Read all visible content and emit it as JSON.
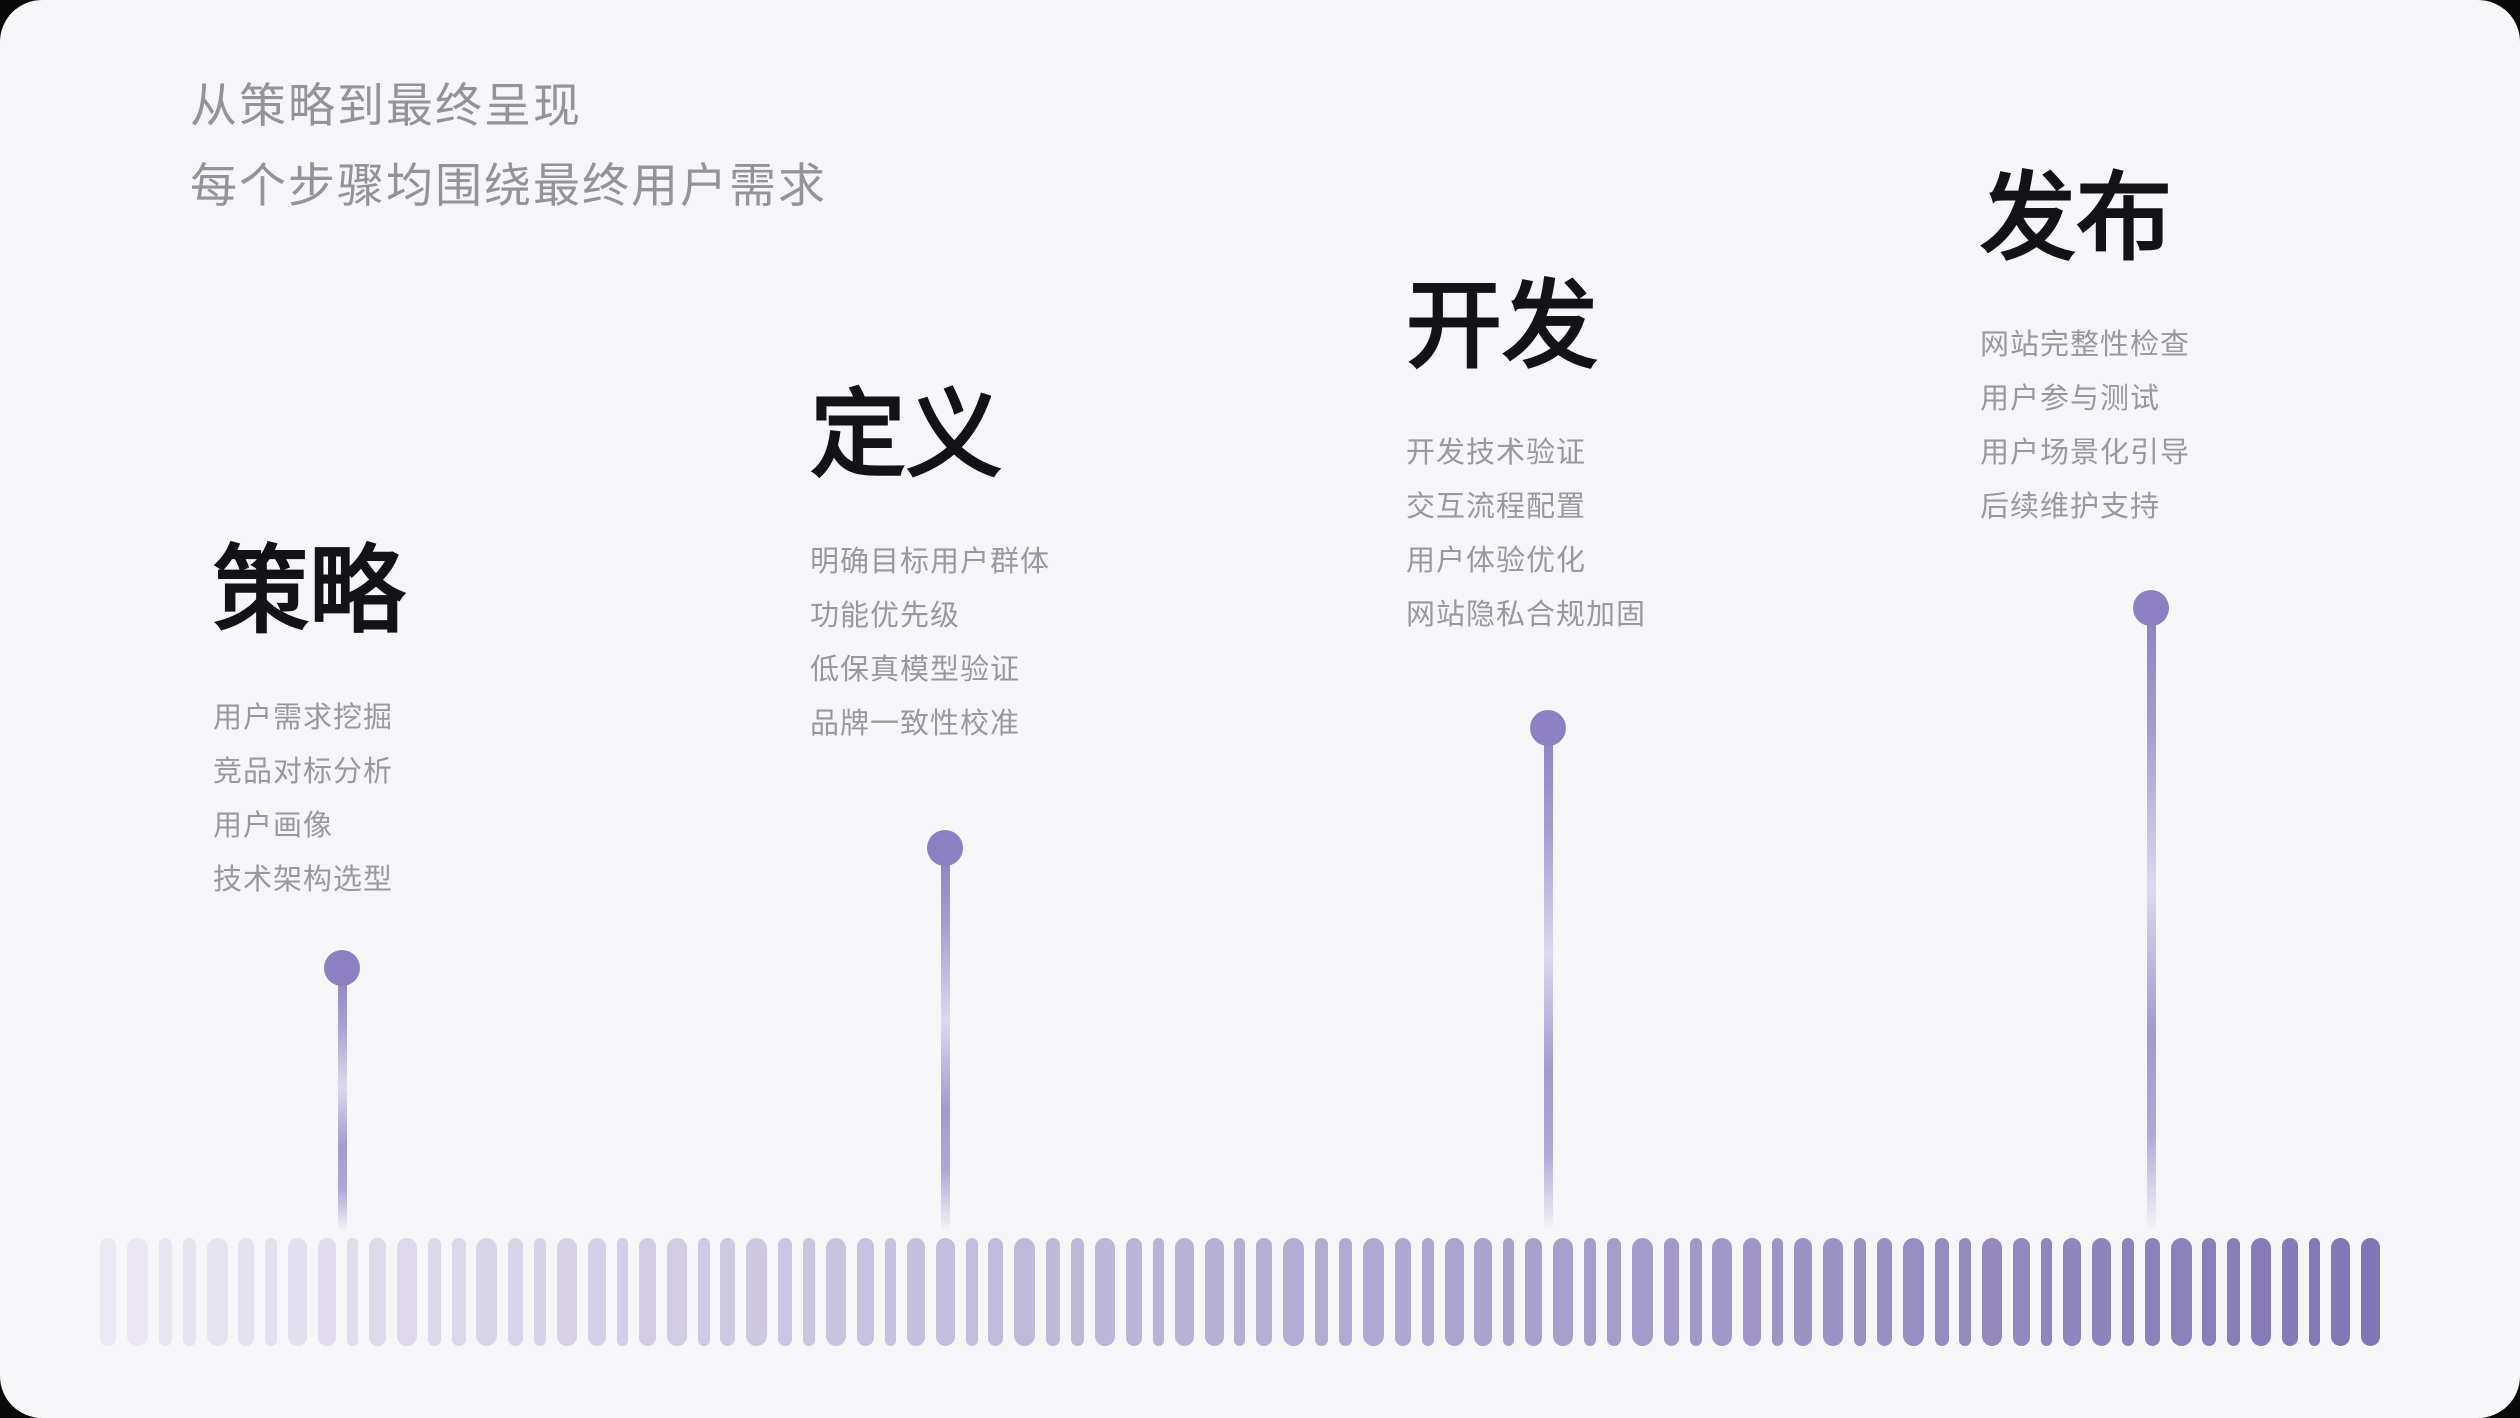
{
  "intro": {
    "line1": "从策略到最终呈现",
    "line2": "每个步骤均围绕最终用户需求"
  },
  "stages": [
    {
      "title": "策略",
      "items": [
        "用户需求挖掘",
        "竞品对标分析",
        "用户画像",
        "技术架构选型"
      ]
    },
    {
      "title": "定义",
      "items": [
        "明确目标用户群体",
        "功能优先级",
        "低保真模型验证",
        "品牌一致性校准"
      ]
    },
    {
      "title": "开发",
      "items": [
        "开发技术验证",
        "交互流程配置",
        "用户体验优化",
        "网站隐私合规加固"
      ]
    },
    {
      "title": "发布",
      "items": [
        "网站完整性检查",
        "用户参与测试",
        "用户场景化引导",
        "后续维护支持"
      ]
    }
  ],
  "colors": {
    "background": "#f6f5f8",
    "heading_text": "#131315",
    "intro_text": "#94939b",
    "item_text": "#99989f",
    "pin": "#8c80c2",
    "ruler_start": "#ebe8f3",
    "ruler_end": "#8176b5"
  },
  "ruler": {
    "bar_count": 85
  }
}
